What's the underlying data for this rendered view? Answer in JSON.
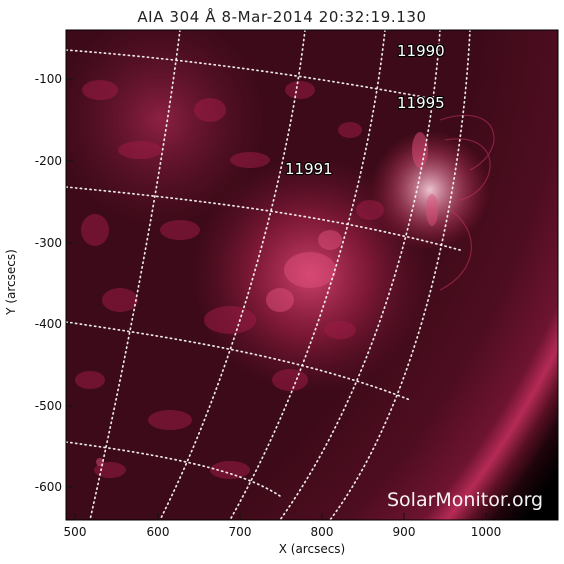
{
  "header": {
    "title": "AIA 304 Å   8-Mar-2014 20:32:19.130"
  },
  "axes": {
    "xlabel": "X (arcsecs)",
    "ylabel": "Y (arcsecs)",
    "x_ticks": [
      "500",
      "600",
      "700",
      "800",
      "900",
      "1000"
    ],
    "y_ticks": [
      "-100",
      "-200",
      "-300",
      "-400",
      "-500",
      "-600"
    ]
  },
  "regions": [
    {
      "label": "11990"
    },
    {
      "label": "11995"
    },
    {
      "label": "11991"
    }
  ],
  "watermark": "SolarMonitor.org",
  "colors": {
    "background": "#000000",
    "plasma": "#c0224e",
    "plasma_bright": "#ffd6e4",
    "grid": "#ffffff"
  }
}
